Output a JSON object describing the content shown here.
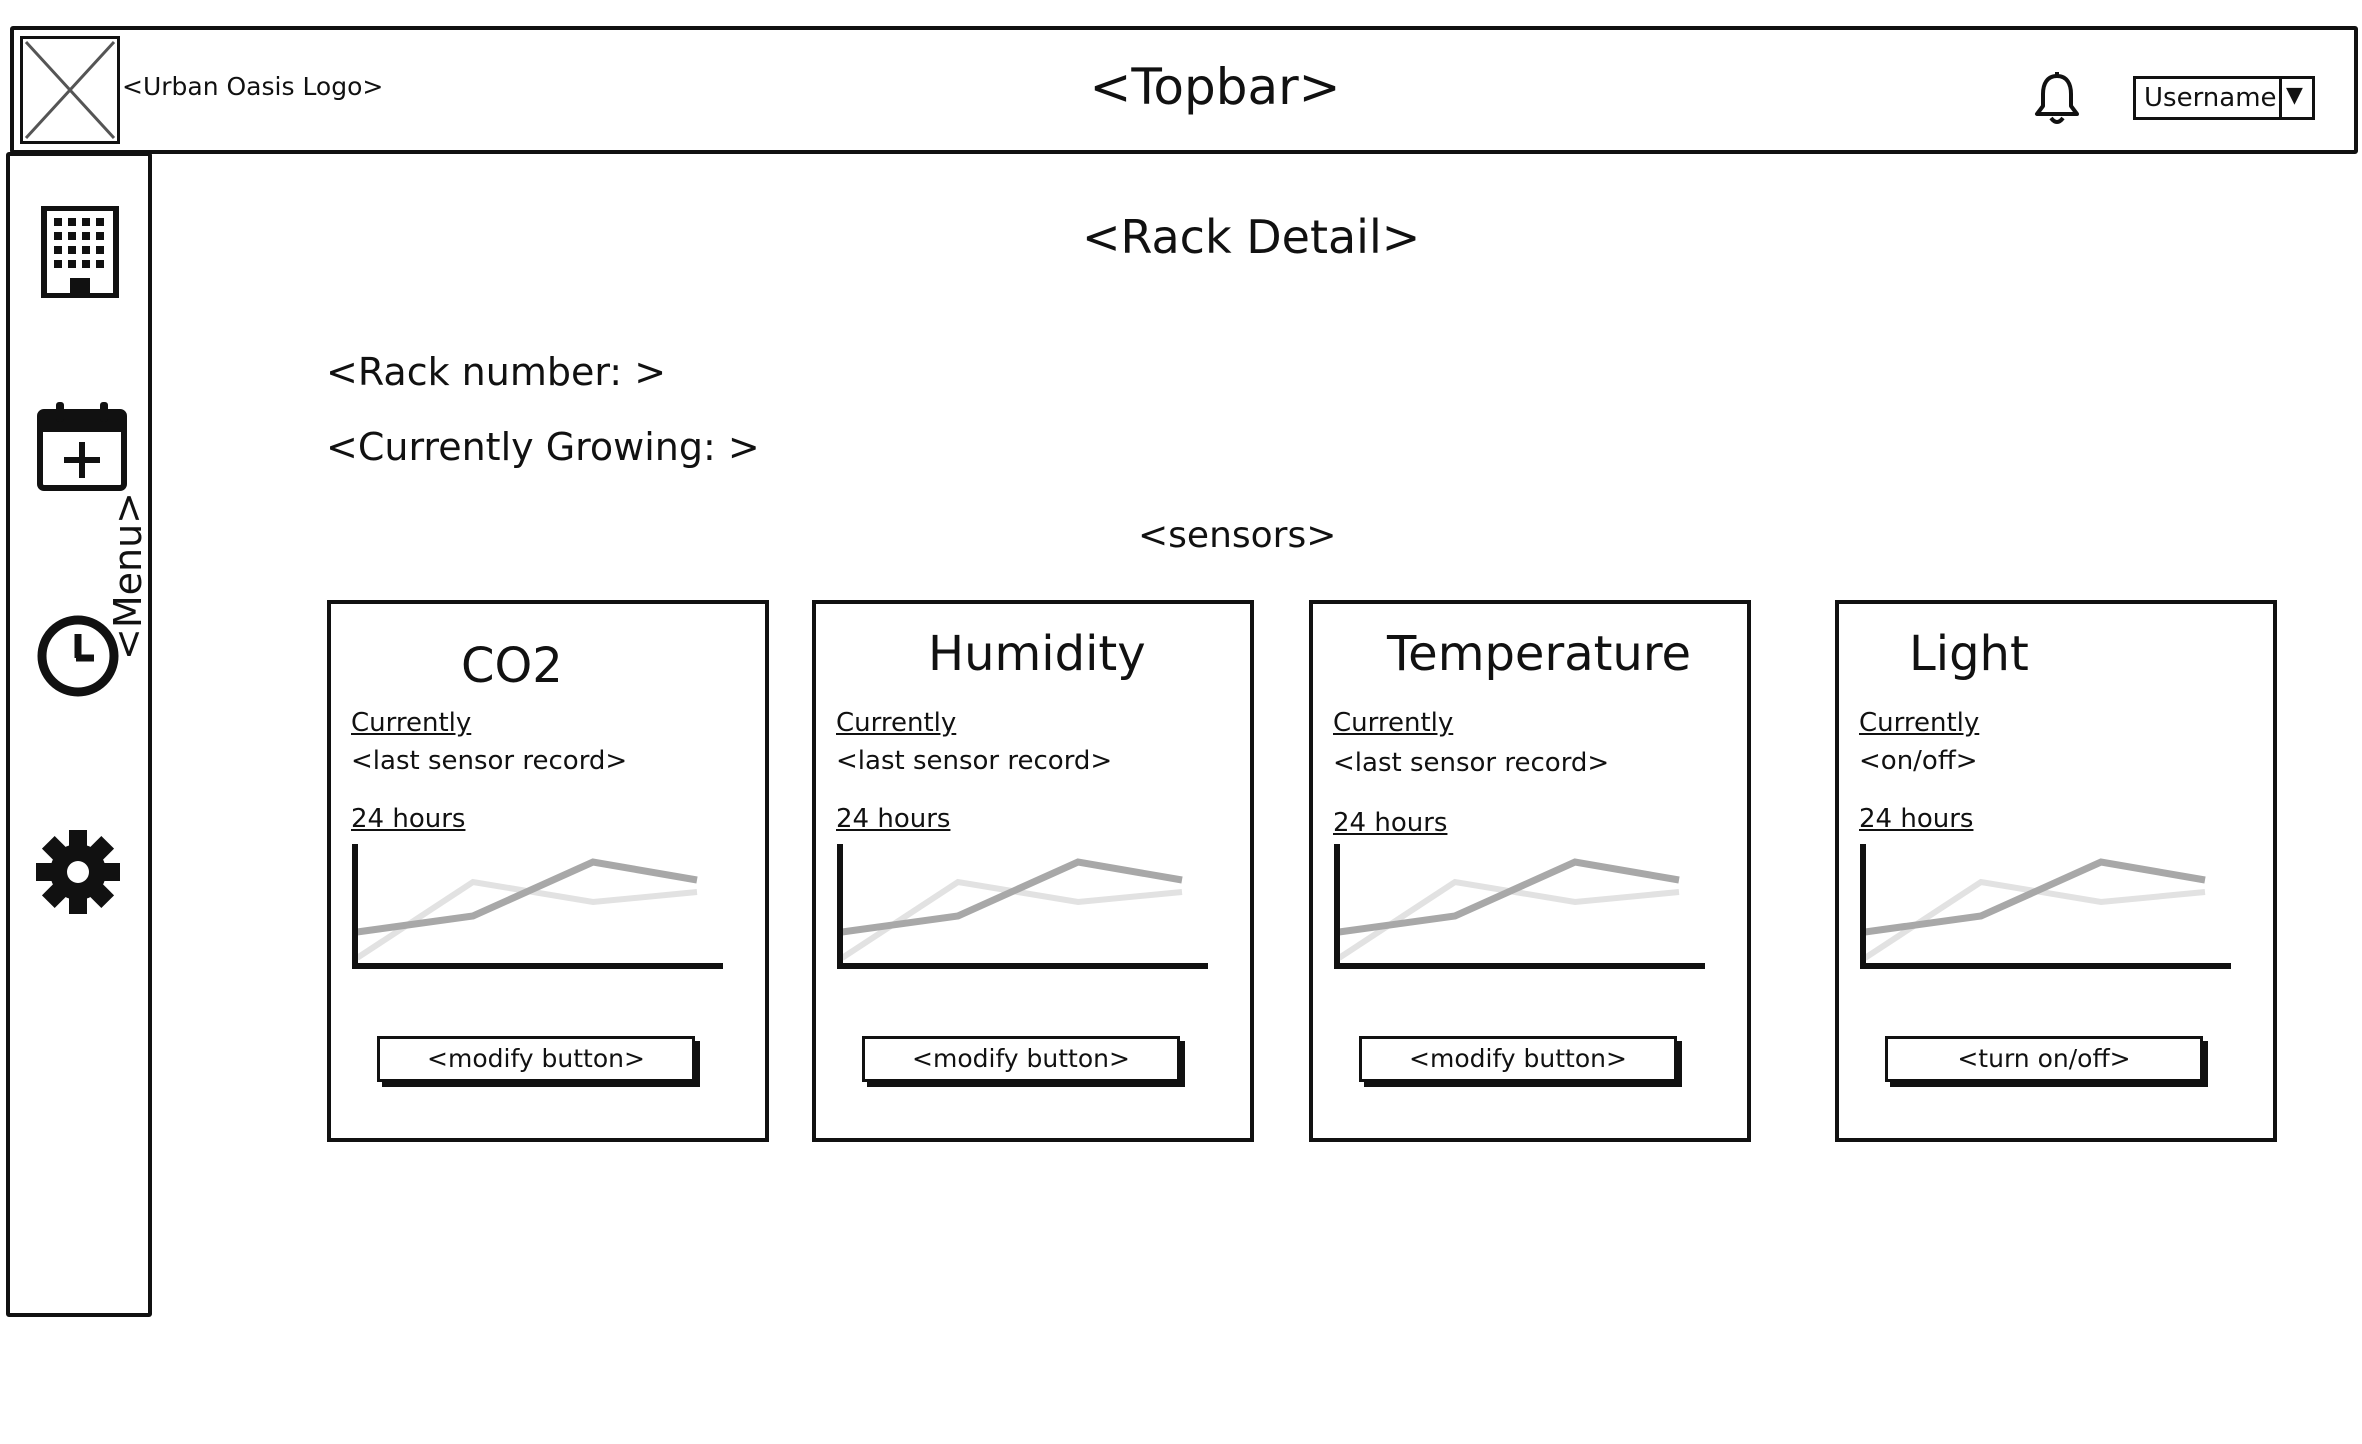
{
  "topbar": {
    "logo_text": "<Urban Oasis Logo>",
    "title": "<Topbar>",
    "username": "Username",
    "caret": "▼"
  },
  "sidebar": {
    "menu_label": "<Menu>",
    "icons": [
      "building-icon",
      "calendar-add-icon",
      "clock-icon",
      "gear-icon"
    ]
  },
  "page": {
    "title": "<Rack Detail>",
    "rack_number": "<Rack number: >",
    "currently_growing": "<Currently Growing: >",
    "sensors_heading": "<sensors>"
  },
  "sensors": [
    {
      "title": "CO2",
      "current_label": "Currently",
      "current_value": "<last sensor record>",
      "history_label": "24 hours",
      "button_label": "<modify button>"
    },
    {
      "title": "Humidity",
      "current_label": "Currently",
      "current_value": "<last sensor record>",
      "history_label": "24 hours",
      "button_label": "<modify button>"
    },
    {
      "title": "Temperature",
      "current_label": "Currently",
      "current_value": "<last sensor record>",
      "history_label": "24 hours",
      "button_label": "<modify button>"
    },
    {
      "title": "Light",
      "current_label": "Currently",
      "current_value": "<on/off>",
      "history_label": "24 hours",
      "button_label": "<turn on/off>"
    }
  ],
  "colors": {
    "stroke": "#111111",
    "chart_dark": "#a8a8a8",
    "chart_light": "#e2e2e2"
  }
}
